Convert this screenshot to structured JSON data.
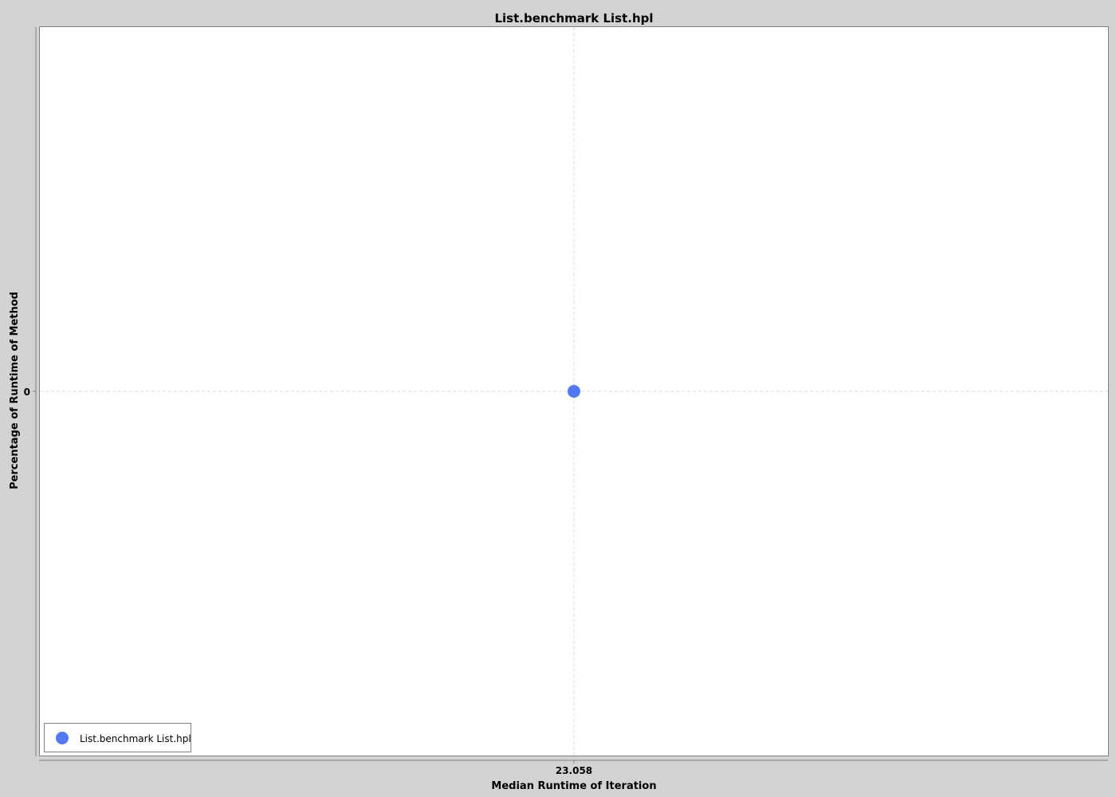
{
  "colors": {
    "background": "#d3d3d3",
    "plot_background": "#ffffff",
    "series": "#5278f5",
    "grid": "#d9d9d9",
    "axis": "#808080"
  },
  "chart_data": {
    "type": "scatter",
    "title": "List.benchmark List.hpl",
    "xlabel": "Median Runtime of Iteration",
    "ylabel": "Percentage of Runtime of Method",
    "x_ticks": [
      23.058
    ],
    "x_tick_labels": [
      "23.058"
    ],
    "y_ticks": [
      0
    ],
    "y_tick_labels": [
      "0"
    ],
    "grid": true,
    "legend_position": "bottom-left",
    "series": [
      {
        "name": "List.benchmark List.hpl",
        "points": [
          {
            "x": 23.058,
            "y": 0
          }
        ]
      }
    ]
  }
}
